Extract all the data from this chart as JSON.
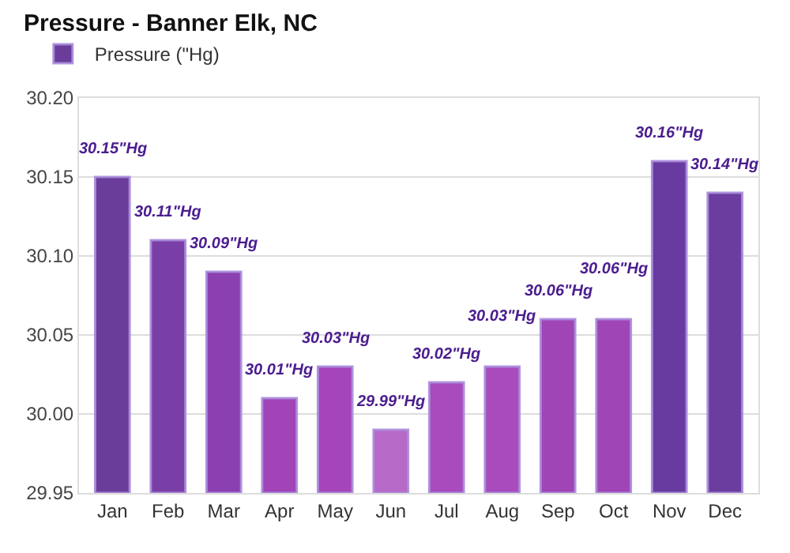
{
  "chart_data": {
    "type": "bar",
    "title": "Pressure - Banner Elk, NC",
    "categories": [
      "Jan",
      "Feb",
      "Mar",
      "Apr",
      "May",
      "Jun",
      "Jul",
      "Aug",
      "Sep",
      "Oct",
      "Nov",
      "Dec"
    ],
    "series": [
      {
        "name": "Pressure (\"Hg)",
        "colors": [
          "#6a3d9a",
          "#7a3fa6",
          "#8a40b0",
          "#a044b8",
          "#a545ba",
          "#b86ac8",
          "#a84bbd",
          "#a84bbd",
          "#9f45b5",
          "#9f45b5",
          "#673ba0",
          "#6a3d9f"
        ],
        "values": [
          30.15,
          30.11,
          30.09,
          30.01,
          30.03,
          29.99,
          30.02,
          30.03,
          30.06,
          30.06,
          30.16,
          30.14
        ],
        "value_labels": [
          "30.15\"Hg",
          "30.11\"Hg",
          "30.09\"Hg",
          "30.01\"Hg",
          "30.03\"Hg",
          "29.99\"Hg",
          "30.02\"Hg",
          "30.03\"Hg",
          "30.06\"Hg",
          "30.06\"Hg",
          "30.16\"Hg",
          "30.14\"Hg"
        ]
      }
    ],
    "ylim": [
      29.95,
      30.2
    ],
    "yticks": [
      "29.95",
      "30.00",
      "30.05",
      "30.10",
      "30.15",
      "30.20"
    ],
    "grid": "y",
    "legend": "top left"
  }
}
